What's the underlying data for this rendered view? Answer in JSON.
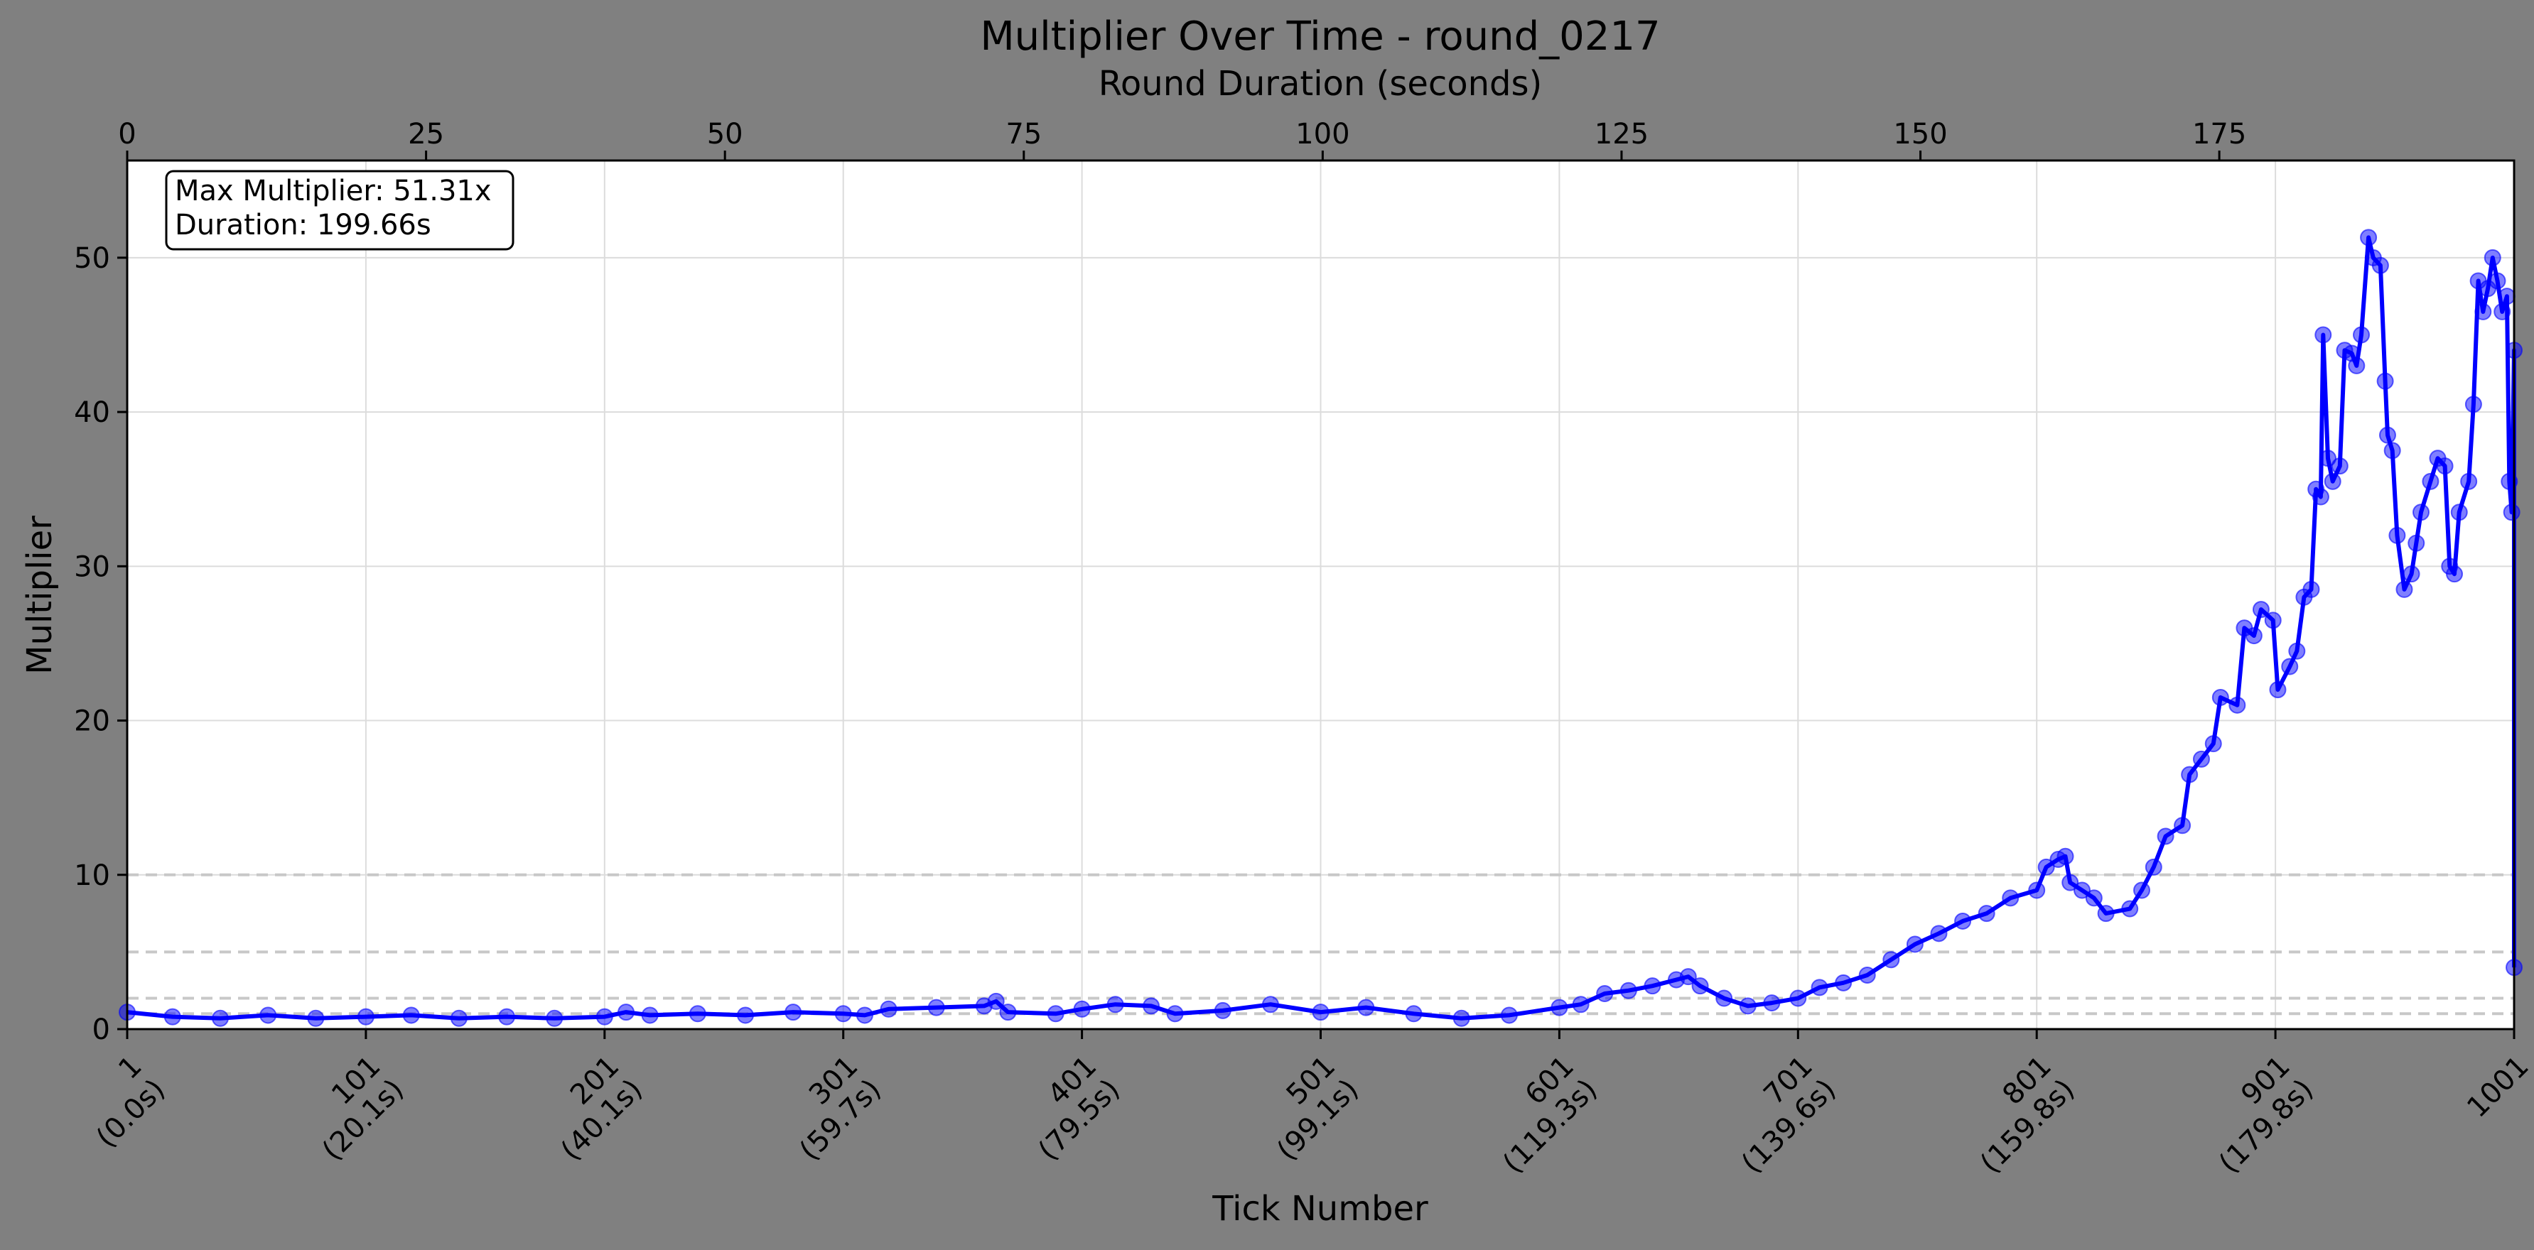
{
  "chart_data": {
    "type": "line",
    "title": "Multiplier Over Time - round_0217",
    "xlabel": "Tick Number",
    "ylabel": "Multiplier",
    "x2label": "Round Duration (seconds)",
    "xlim": [
      1,
      1001
    ],
    "ylim": [
      0,
      56.3
    ],
    "x2lim": [
      0,
      199.66
    ],
    "x_ticks": [
      {
        "value": 1,
        "line1": "1",
        "line2": "(0.0s)"
      },
      {
        "value": 101,
        "line1": "101",
        "line2": "(20.1s)"
      },
      {
        "value": 201,
        "line1": "201",
        "line2": "(40.1s)"
      },
      {
        "value": 301,
        "line1": "301",
        "line2": "(59.7s)"
      },
      {
        "value": 401,
        "line1": "401",
        "line2": "(79.5s)"
      },
      {
        "value": 501,
        "line1": "501",
        "line2": "(99.1s)"
      },
      {
        "value": 601,
        "line1": "601",
        "line2": "(119.3s)"
      },
      {
        "value": 701,
        "line1": "701",
        "line2": "(139.6s)"
      },
      {
        "value": 801,
        "line1": "801",
        "line2": "(159.8s)"
      },
      {
        "value": 901,
        "line1": "901",
        "line2": "(179.8s)"
      },
      {
        "value": 1001,
        "line1": "1001",
        "line2": ""
      }
    ],
    "y_ticks": [
      0,
      10,
      20,
      30,
      40,
      50
    ],
    "x2_ticks": [
      0,
      25,
      50,
      75,
      100,
      125,
      150,
      175
    ],
    "reference_lines": [
      1,
      2,
      5,
      10
    ],
    "grid": true,
    "annotation": {
      "line1": "Max Multiplier: 51.31x",
      "line2": "Duration: 199.66s",
      "position": "top-left"
    },
    "series": [
      {
        "color": "#0000ff",
        "points": [
          [
            1,
            1.1
          ],
          [
            20,
            0.8
          ],
          [
            40,
            0.7
          ],
          [
            60,
            0.9
          ],
          [
            80,
            0.7
          ],
          [
            101,
            0.8
          ],
          [
            120,
            0.9
          ],
          [
            140,
            0.7
          ],
          [
            160,
            0.8
          ],
          [
            180,
            0.7
          ],
          [
            201,
            0.8
          ],
          [
            210,
            1.1
          ],
          [
            220,
            0.9
          ],
          [
            240,
            1.0
          ],
          [
            260,
            0.9
          ],
          [
            280,
            1.1
          ],
          [
            301,
            1.0
          ],
          [
            310,
            0.9
          ],
          [
            320,
            1.3
          ],
          [
            340,
            1.4
          ],
          [
            360,
            1.5
          ],
          [
            365,
            1.8
          ],
          [
            370,
            1.1
          ],
          [
            390,
            1.0
          ],
          [
            401,
            1.3
          ],
          [
            415,
            1.6
          ],
          [
            430,
            1.5
          ],
          [
            440,
            1.0
          ],
          [
            460,
            1.2
          ],
          [
            480,
            1.6
          ],
          [
            501,
            1.1
          ],
          [
            520,
            1.4
          ],
          [
            540,
            1.0
          ],
          [
            560,
            0.7
          ],
          [
            580,
            0.9
          ],
          [
            601,
            1.4
          ],
          [
            610,
            1.6
          ],
          [
            620,
            2.3
          ],
          [
            630,
            2.5
          ],
          [
            640,
            2.8
          ],
          [
            650,
            3.2
          ],
          [
            655,
            3.4
          ],
          [
            660,
            2.8
          ],
          [
            670,
            2.0
          ],
          [
            680,
            1.5
          ],
          [
            690,
            1.7
          ],
          [
            701,
            2.0
          ],
          [
            710,
            2.7
          ],
          [
            720,
            3.0
          ],
          [
            730,
            3.5
          ],
          [
            740,
            4.5
          ],
          [
            750,
            5.5
          ],
          [
            760,
            6.2
          ],
          [
            770,
            7.0
          ],
          [
            780,
            7.5
          ],
          [
            790,
            8.5
          ],
          [
            801,
            9.0
          ],
          [
            805,
            10.5
          ],
          [
            810,
            11.0
          ],
          [
            813,
            11.2
          ],
          [
            815,
            9.5
          ],
          [
            820,
            9.0
          ],
          [
            825,
            8.5
          ],
          [
            830,
            7.5
          ],
          [
            840,
            7.8
          ],
          [
            845,
            9.0
          ],
          [
            850,
            10.5
          ],
          [
            855,
            12.5
          ],
          [
            862,
            13.2
          ],
          [
            865,
            16.5
          ],
          [
            870,
            17.5
          ],
          [
            875,
            18.5
          ],
          [
            878,
            21.5
          ],
          [
            885,
            21.0
          ],
          [
            888,
            26.0
          ],
          [
            892,
            25.5
          ],
          [
            895,
            27.2
          ],
          [
            900,
            26.5
          ],
          [
            902,
            22.0
          ],
          [
            907,
            23.5
          ],
          [
            910,
            24.5
          ],
          [
            913,
            28.0
          ],
          [
            916,
            28.5
          ],
          [
            918,
            35.0
          ],
          [
            920,
            34.5
          ],
          [
            921,
            45.0
          ],
          [
            923,
            37.0
          ],
          [
            925,
            35.5
          ],
          [
            928,
            36.5
          ],
          [
            930,
            44.0
          ],
          [
            933,
            43.8
          ],
          [
            935,
            43.0
          ],
          [
            937,
            45.0
          ],
          [
            940,
            51.31
          ],
          [
            942,
            50.0
          ],
          [
            945,
            49.5
          ],
          [
            947,
            42.0
          ],
          [
            948,
            38.5
          ],
          [
            950,
            37.5
          ],
          [
            952,
            32.0
          ],
          [
            955,
            28.5
          ],
          [
            958,
            29.5
          ],
          [
            960,
            31.5
          ],
          [
            962,
            33.5
          ],
          [
            966,
            35.5
          ],
          [
            969,
            37.0
          ],
          [
            972,
            36.5
          ],
          [
            974,
            30.0
          ],
          [
            976,
            29.5
          ],
          [
            978,
            33.5
          ],
          [
            982,
            35.5
          ],
          [
            984,
            40.5
          ],
          [
            986,
            48.5
          ],
          [
            988,
            46.5
          ],
          [
            990,
            48.0
          ],
          [
            992,
            50.0
          ],
          [
            994,
            48.5
          ],
          [
            996,
            46.5
          ],
          [
            998,
            47.5
          ],
          [
            999,
            35.5
          ],
          [
            1000,
            33.5
          ],
          [
            1001,
            44.0
          ],
          [
            1001,
            4.0
          ]
        ]
      }
    ]
  }
}
